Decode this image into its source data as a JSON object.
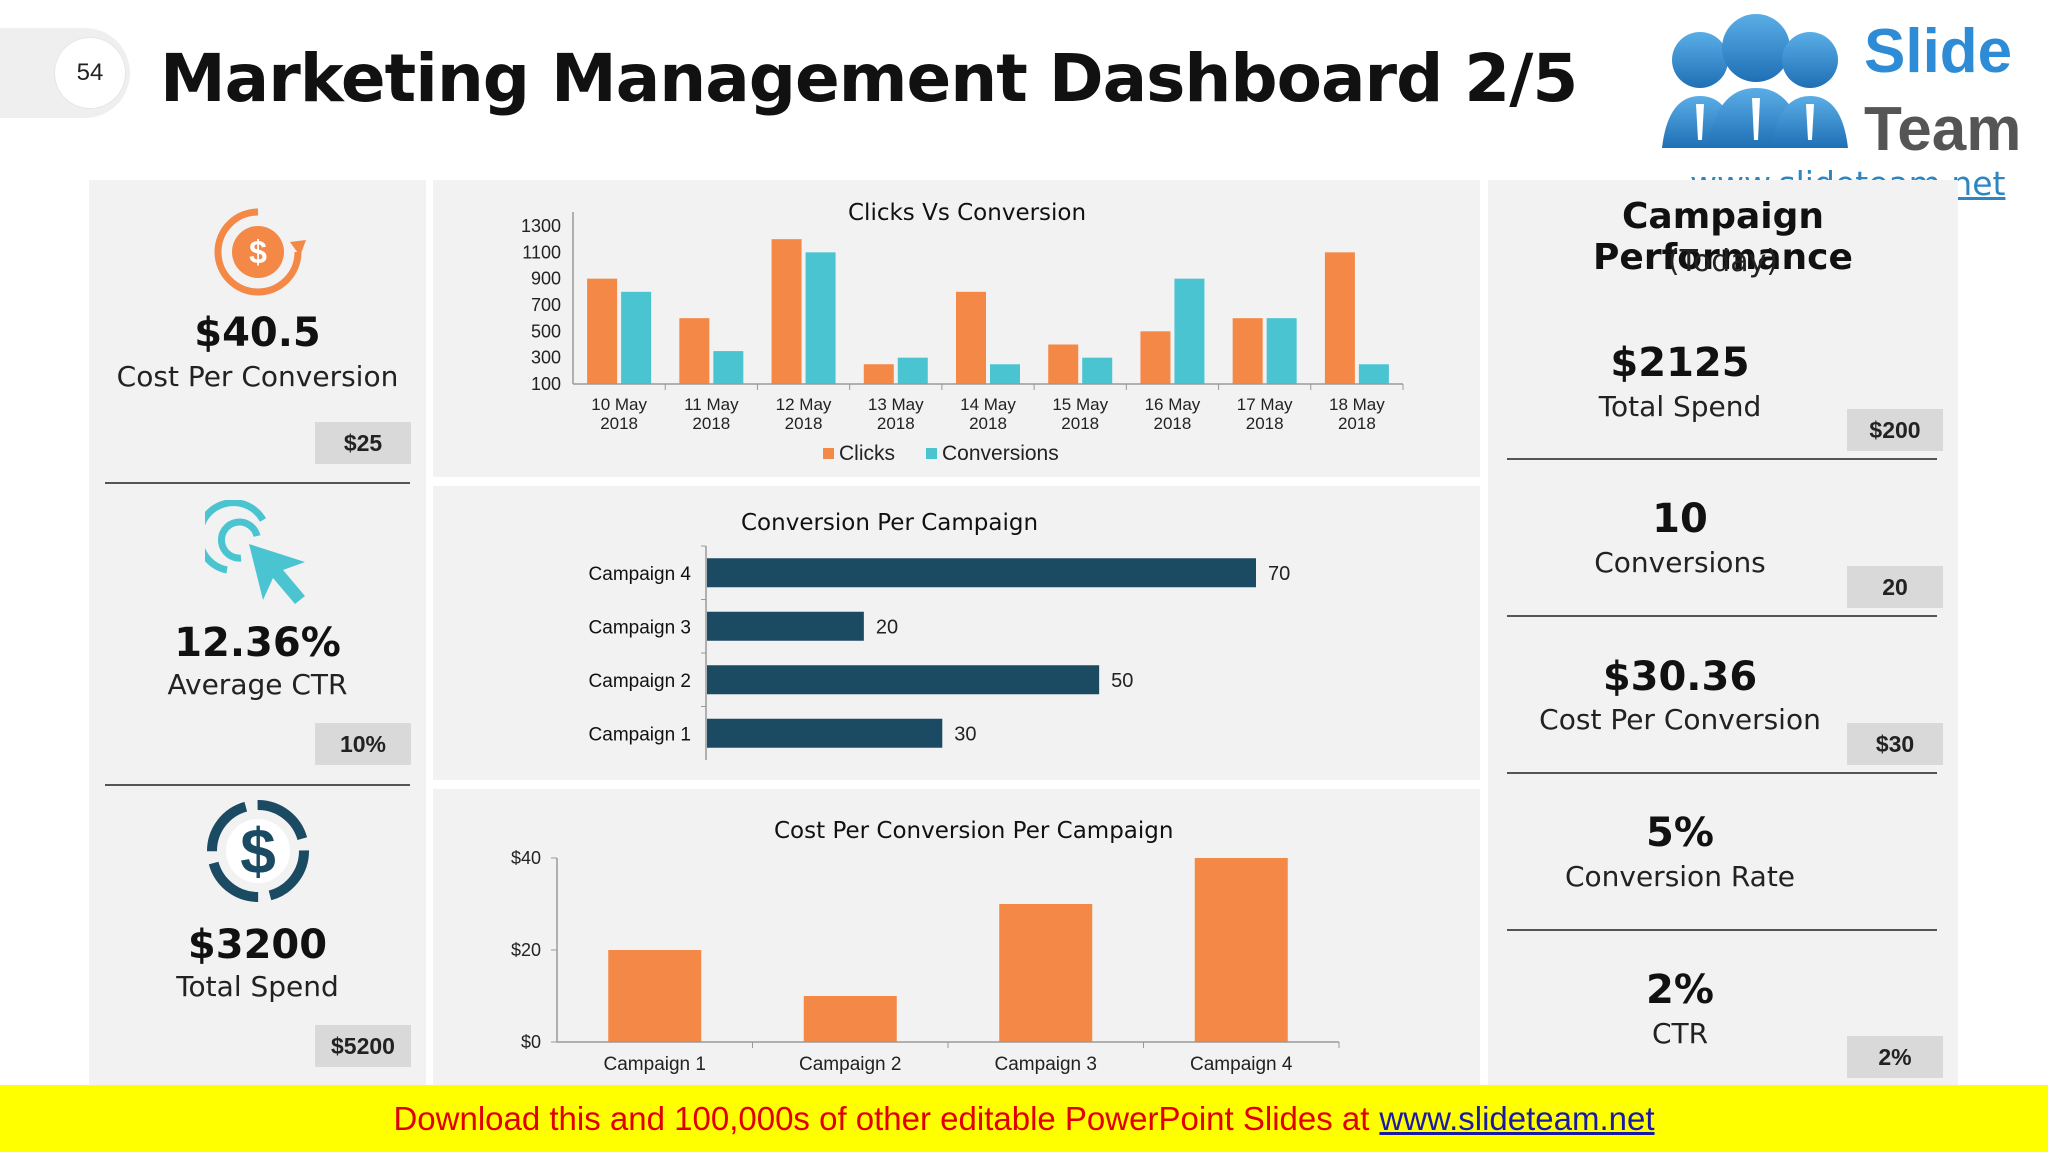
{
  "slide_number": "54",
  "title": "Marketing Management Dashboard 2/5",
  "logo": {
    "line1": "Slide",
    "line2": "Team",
    "url": "www.slideteam.net"
  },
  "colors": {
    "orange": "#f48847",
    "teal": "#4bc4d2",
    "navy": "#1b4a63",
    "panel": "#f2f2f2",
    "target_box": "#d9d9d9",
    "banner": "#ffff00",
    "banner_text": "#e00000"
  },
  "left_kpis": [
    {
      "icon": "dollar-refresh-icon",
      "value": "$40.5",
      "label": "Cost Per Conversion",
      "target": "$25"
    },
    {
      "icon": "cursor-click-icon",
      "value": "12.36%",
      "label": "Average CTR",
      "target": "10%"
    },
    {
      "icon": "dollar-circle-icon",
      "value": "$3200",
      "label": "Total Spend",
      "target": "$5200"
    }
  ],
  "campaign_performance": {
    "title": "Campaign Performance",
    "subtitle": "(Today)",
    "items": [
      {
        "value": "$2125",
        "label": "Total Spend",
        "target": "$200"
      },
      {
        "value": "10",
        "label": "Conversions",
        "target": "20"
      },
      {
        "value": "$30.36",
        "label": "Cost Per Conversion",
        "target": "$30"
      },
      {
        "value": "5%",
        "label": "Conversion Rate",
        "target": ""
      },
      {
        "value": "2%",
        "label": "CTR",
        "target": "2%"
      }
    ]
  },
  "chart_data": [
    {
      "type": "bar",
      "title": "Clicks Vs Conversion",
      "categories": [
        [
          "10 May",
          "2018"
        ],
        [
          "11 May",
          "2018"
        ],
        [
          "12 May",
          "2018"
        ],
        [
          "13 May",
          "2018"
        ],
        [
          "14 May",
          "2018"
        ],
        [
          "15 May",
          "2018"
        ],
        [
          "16 May",
          "2018"
        ],
        [
          "17 May",
          "2018"
        ],
        [
          "18 May",
          "2018"
        ]
      ],
      "series": [
        {
          "name": "Clicks",
          "color": "#f48847",
          "values": [
            900,
            600,
            1200,
            250,
            800,
            400,
            500,
            600,
            1100
          ]
        },
        {
          "name": "Conversions",
          "color": "#4bc4d2",
          "values": [
            800,
            350,
            1100,
            300,
            250,
            300,
            900,
            600,
            250
          ]
        }
      ],
      "yticks": [
        "1300",
        "1100",
        "900",
        "700",
        "500",
        "300",
        "100"
      ],
      "ylim": [
        100,
        1300
      ],
      "legend": "bottom"
    },
    {
      "type": "bar",
      "orientation": "horizontal",
      "title": "Conversion Per Campaign",
      "categories": [
        "Campaign 4",
        "Campaign 3",
        "Campaign 2",
        "Campaign 1"
      ],
      "values": [
        70,
        20,
        50,
        30
      ],
      "value_labels": [
        "70",
        "20",
        "50",
        "30"
      ],
      "xlim": [
        0,
        70
      ],
      "color": "#1b4a63"
    },
    {
      "type": "bar",
      "title": "Cost Per Conversion Per Campaign",
      "categories": [
        "Campaign 1",
        "Campaign 2",
        "Campaign 3",
        "Campaign 4"
      ],
      "values": [
        20,
        10,
        30,
        40
      ],
      "yticks": [
        "$40",
        "$20",
        "$0"
      ],
      "ylim": [
        0,
        40
      ],
      "color": "#f48847"
    }
  ],
  "banner": {
    "text": "Download this and 100,000s of other editable PowerPoint Slides at",
    "link": "www.slideteam.net"
  }
}
